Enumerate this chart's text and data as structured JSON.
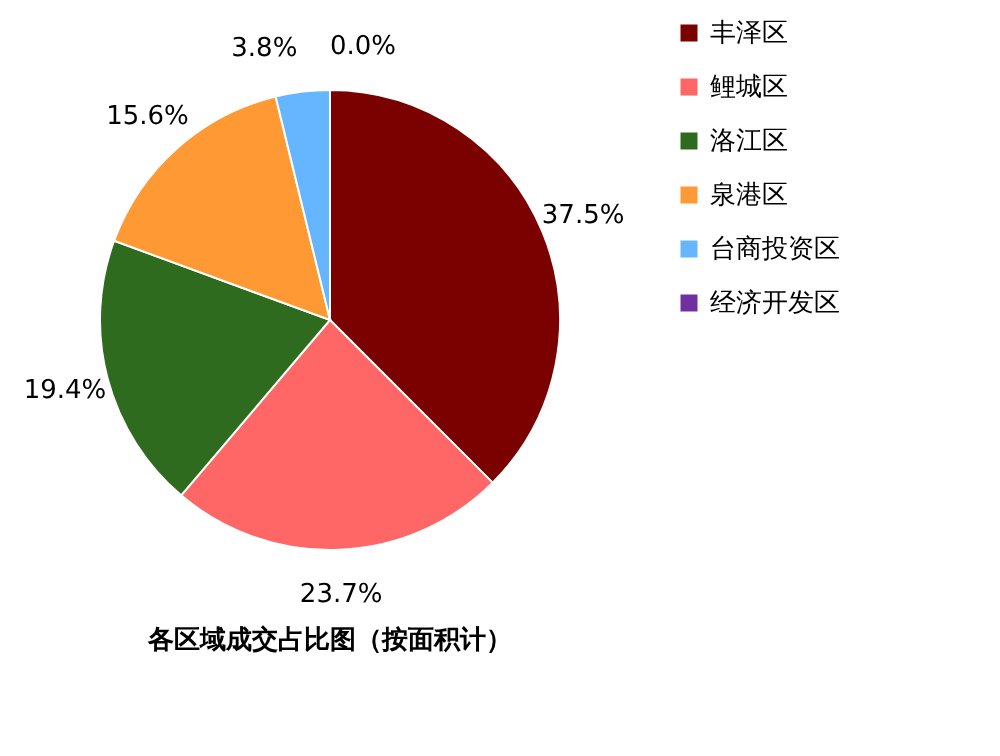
{
  "chart_data": {
    "type": "pie",
    "title": "各区域成交占比图（按面积计）",
    "categories": [
      "丰泽区",
      "鲤城区",
      "洛江区",
      "泉港区",
      "台商投资区",
      "经济开发区"
    ],
    "values": [
      37.5,
      23.7,
      19.4,
      15.6,
      3.8,
      0.0
    ],
    "value_labels": [
      "37.5%",
      "23.7%",
      "19.4%",
      "15.6%",
      "3.8%",
      "0.0%"
    ],
    "colors": [
      "#7b0000",
      "#ff6666",
      "#2f6b1e",
      "#ff9933",
      "#66b5ff",
      "#7030a0"
    ],
    "legend": "right"
  }
}
